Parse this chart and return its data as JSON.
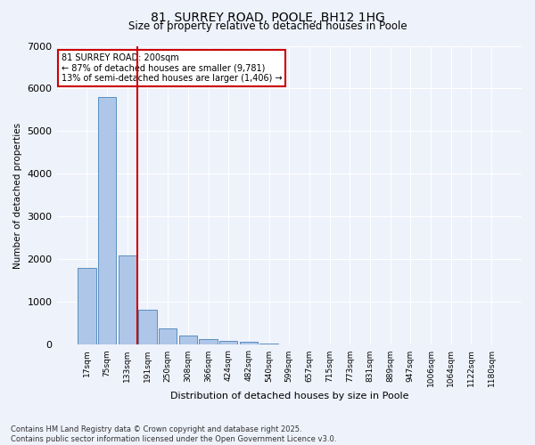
{
  "title": "81, SURREY ROAD, POOLE, BH12 1HG",
  "subtitle": "Size of property relative to detached houses in Poole",
  "xlabel": "Distribution of detached houses by size in Poole",
  "ylabel": "Number of detached properties",
  "categories": [
    "17sqm",
    "75sqm",
    "133sqm",
    "191sqm",
    "250sqm",
    "308sqm",
    "366sqm",
    "424sqm",
    "482sqm",
    "540sqm",
    "599sqm",
    "657sqm",
    "715sqm",
    "773sqm",
    "831sqm",
    "889sqm",
    "947sqm",
    "1006sqm",
    "1064sqm",
    "1122sqm",
    "1180sqm"
  ],
  "values": [
    1800,
    5800,
    2100,
    820,
    380,
    220,
    130,
    90,
    80,
    30,
    15,
    5,
    2,
    1,
    0,
    0,
    0,
    0,
    0,
    0,
    0
  ],
  "bar_color": "#aec6e8",
  "bar_edge_color": "#5a8fc0",
  "vline_color": "#cc0000",
  "vline_pos": 2.5,
  "ylim": [
    0,
    7000
  ],
  "yticks": [
    0,
    1000,
    2000,
    3000,
    4000,
    5000,
    6000,
    7000
  ],
  "annotation_title": "81 SURREY ROAD: 200sqm",
  "annotation_line1": "← 87% of detached houses are smaller (9,781)",
  "annotation_line2": "13% of semi-detached houses are larger (1,406) →",
  "annotation_box_color": "#cc0000",
  "background_color": "#eef2fb",
  "grid_color": "#ffffff",
  "footer_line1": "Contains HM Land Registry data © Crown copyright and database right 2025.",
  "footer_line2": "Contains public sector information licensed under the Open Government Licence v3.0."
}
